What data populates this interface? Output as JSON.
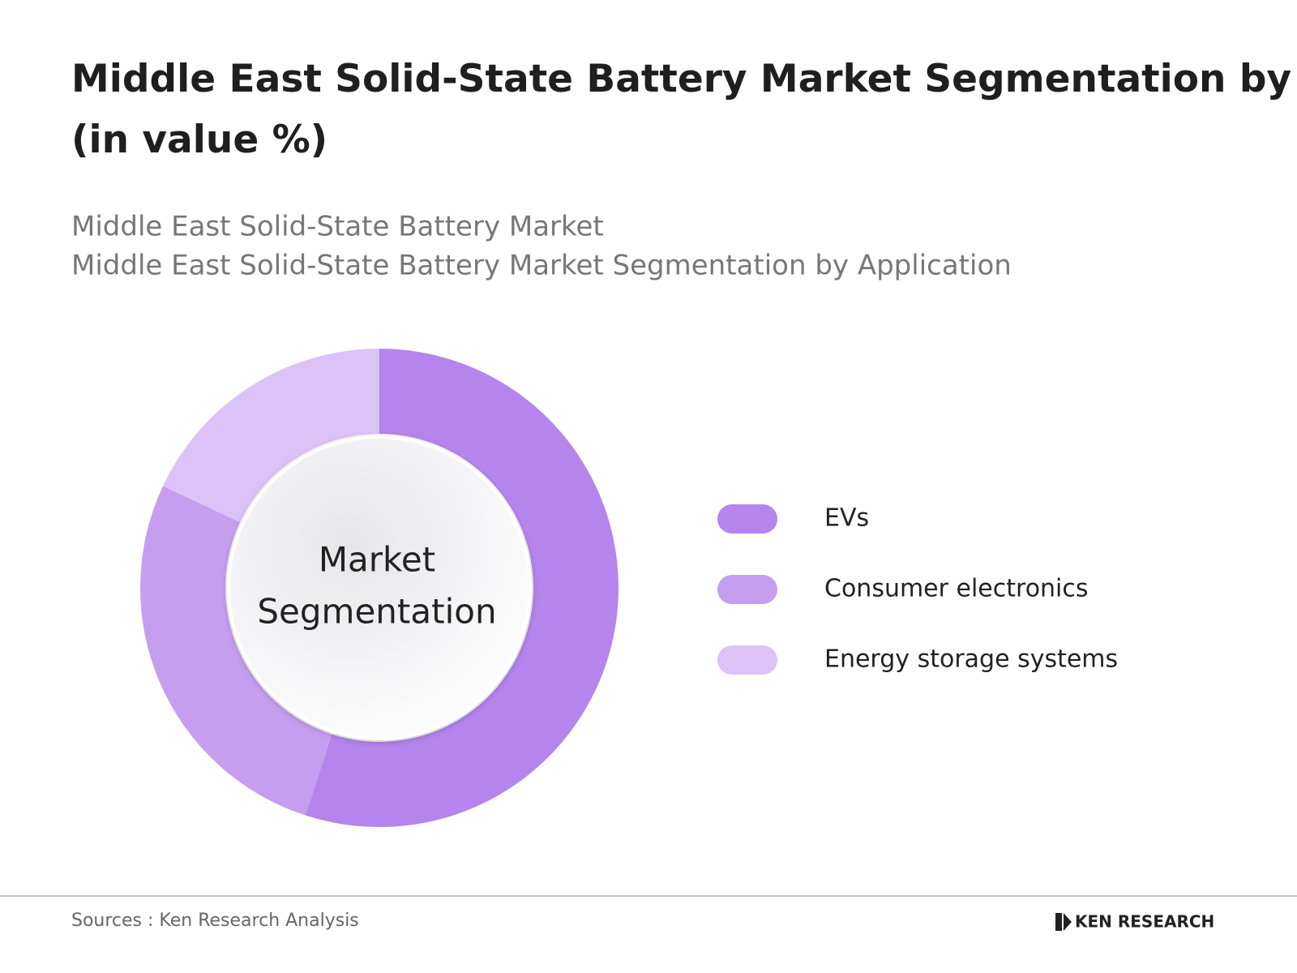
{
  "chart_data": {
    "type": "donut",
    "title": "Middle East Solid-State Battery Market Segmentation by Application (in value %)",
    "subtitle": [
      "Middle East Solid-State Battery Market",
      "Middle East Solid-State Battery Market Segmentation by  Application"
    ],
    "center_label": [
      "Market",
      "Segmentation"
    ],
    "categories": [
      "EVs",
      "Consumer electronics",
      "Energy storage systems"
    ],
    "values": [
      55,
      27,
      18
    ],
    "colors": [
      "#b584ec",
      "#c69ef0",
      "#dcc3f7"
    ],
    "source": "Sources : Ken Research Analysis",
    "brand": "KEN RESEARCH"
  }
}
